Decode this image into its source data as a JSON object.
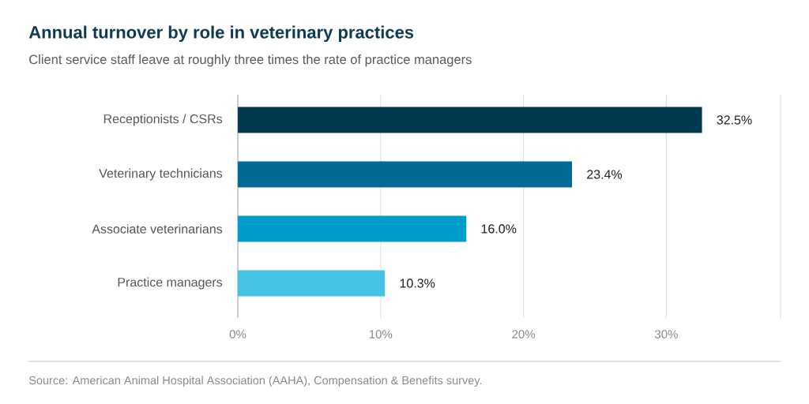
{
  "chart_data": {
    "type": "bar",
    "orientation": "horizontal",
    "title": "Annual turnover by role in veterinary practices",
    "subtitle": "Client service staff leave at roughly three times the rate of practice managers",
    "categories": [
      "Receptionists / CSRs",
      "Veterinary technicians",
      "Associate veterinarians",
      "Practice managers"
    ],
    "values": [
      32.5,
      23.4,
      16.0,
      10.3
    ],
    "colors": [
      "#033a50",
      "#006b94",
      "#009ccb",
      "#45c3e6"
    ],
    "value_labels": [
      "32.5%",
      "23.4%",
      "16.0%",
      "10.3%"
    ],
    "xlim": [
      0,
      38
    ],
    "xticks": [
      {
        "value": 0,
        "label": "0%"
      },
      {
        "value": 10,
        "label": "10%"
      },
      {
        "value": 20,
        "label": "20%"
      },
      {
        "value": 30,
        "label": "30%"
      }
    ],
    "grid": "x",
    "annotations": [
      "Source: American Animal Hospital Association (AAHA), Compensation & Benefits survey."
    ]
  }
}
